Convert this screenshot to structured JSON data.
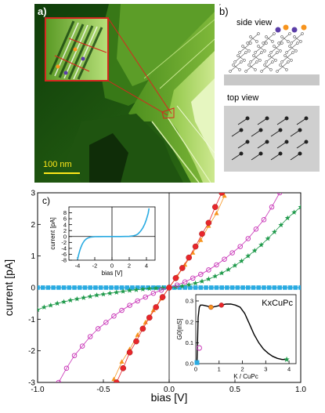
{
  "panel_a": {
    "label": "a)",
    "scalebar": "100 nm"
  },
  "panel_b": {
    "label": "b)",
    "side_view": "side view",
    "top_view": "top view"
  },
  "chart_data": [
    {
      "type": "line",
      "panel_label": "c)",
      "xlabel": "bias [V]",
      "ylabel": "current [pA]",
      "xlim": [
        -1.0,
        1.0
      ],
      "ylim": [
        -3,
        3
      ],
      "xticks": [
        "-1.0",
        "-0.5",
        "0.0",
        "0.5",
        "1.0"
      ],
      "yticks": [
        "-3",
        "-2",
        "-1",
        "0",
        "1",
        "2",
        "3"
      ],
      "grid": false,
      "series": [
        {
          "marker": "filled-circle",
          "color": "#e8262b",
          "x": [
            -0.4,
            -0.35,
            -0.3,
            -0.25,
            -0.2,
            -0.15,
            -0.1,
            -0.05,
            0.0,
            0.05,
            0.1,
            0.15,
            0.2,
            0.25,
            0.3,
            0.35,
            0.4
          ],
          "y": [
            -3.0,
            -2.55,
            -2.05,
            -1.7,
            -1.3,
            -0.95,
            -0.62,
            -0.3,
            0.0,
            0.3,
            0.62,
            0.95,
            1.3,
            1.7,
            2.05,
            2.55,
            3.0
          ]
        },
        {
          "marker": "triangle",
          "color": "#f7941d",
          "x": [
            -0.42,
            -0.36,
            -0.3,
            -0.24,
            -0.18,
            -0.12,
            -0.06,
            0.0,
            0.06,
            0.12,
            0.18,
            0.24,
            0.3,
            0.36,
            0.42
          ],
          "y": [
            -2.9,
            -2.35,
            -1.95,
            -1.5,
            -1.1,
            -0.72,
            -0.35,
            0.0,
            0.35,
            0.72,
            1.1,
            1.5,
            1.95,
            2.35,
            2.9
          ]
        },
        {
          "marker": "open-circle",
          "color": "#c72fb5",
          "x": [
            -0.84,
            -0.78,
            -0.72,
            -0.66,
            -0.6,
            -0.54,
            -0.48,
            -0.42,
            -0.36,
            -0.3,
            -0.24,
            -0.18,
            -0.12,
            -0.06,
            0.0,
            0.06,
            0.12,
            0.18,
            0.24,
            0.3,
            0.36,
            0.42,
            0.48,
            0.54,
            0.6,
            0.66,
            0.72,
            0.78,
            0.84
          ],
          "y": [
            -3.0,
            -2.55,
            -2.15,
            -1.85,
            -1.55,
            -1.3,
            -1.1,
            -0.9,
            -0.72,
            -0.56,
            -0.42,
            -0.3,
            -0.18,
            -0.08,
            0.0,
            0.08,
            0.18,
            0.3,
            0.42,
            0.56,
            0.72,
            0.9,
            1.1,
            1.3,
            1.55,
            1.85,
            2.15,
            2.55,
            3.0
          ]
        },
        {
          "marker": "star",
          "color": "#1f9a4b",
          "x": [
            -1.0,
            -0.95,
            -0.9,
            -0.85,
            -0.8,
            -0.75,
            -0.7,
            -0.65,
            -0.6,
            -0.55,
            -0.5,
            -0.45,
            -0.4,
            -0.35,
            -0.3,
            -0.25,
            -0.2,
            -0.15,
            -0.1,
            -0.05,
            0.0,
            0.05,
            0.1,
            0.15,
            0.2,
            0.25,
            0.3,
            0.35,
            0.4,
            0.45,
            0.5,
            0.55,
            0.6,
            0.65,
            0.7,
            0.75,
            0.8,
            0.85,
            0.9,
            0.95,
            1.0
          ],
          "y": [
            -0.7,
            -0.62,
            -0.56,
            -0.5,
            -0.45,
            -0.4,
            -0.36,
            -0.32,
            -0.28,
            -0.24,
            -0.21,
            -0.18,
            -0.15,
            -0.12,
            -0.09,
            -0.07,
            -0.05,
            -0.03,
            -0.02,
            -0.01,
            0.0,
            0.02,
            0.05,
            0.09,
            0.14,
            0.2,
            0.27,
            0.36,
            0.46,
            0.57,
            0.7,
            0.84,
            1.0,
            1.17,
            1.35,
            1.55,
            1.76,
            1.98,
            2.2,
            2.38,
            2.55
          ]
        },
        {
          "marker": "filled-square",
          "color": "#29abe2",
          "x": [
            -1.0,
            -0.96,
            -0.92,
            -0.88,
            -0.84,
            -0.8,
            -0.76,
            -0.72,
            -0.68,
            -0.64,
            -0.6,
            -0.56,
            -0.52,
            -0.48,
            -0.44,
            -0.4,
            -0.36,
            -0.32,
            -0.28,
            -0.24,
            -0.2,
            -0.16,
            -0.12,
            -0.08,
            -0.04,
            0.0,
            0.04,
            0.08,
            0.12,
            0.16,
            0.2,
            0.24,
            0.28,
            0.32,
            0.36,
            0.4,
            0.44,
            0.48,
            0.52,
            0.56,
            0.6,
            0.64,
            0.68,
            0.72,
            0.76,
            0.8,
            0.84,
            0.88,
            0.92,
            0.96,
            1.0
          ],
          "y": [
            0,
            0,
            0,
            0,
            0,
            0,
            0,
            0,
            0,
            0,
            0,
            0,
            0,
            0,
            0,
            0,
            0,
            0,
            0,
            0,
            0,
            0,
            0,
            0,
            0,
            0,
            0,
            0,
            0,
            0,
            0,
            0,
            0,
            0,
            0,
            0,
            0,
            0,
            0,
            0,
            0,
            0,
            0,
            0,
            0,
            0,
            0,
            0,
            0,
            0,
            0
          ]
        }
      ]
    },
    {
      "type": "line",
      "xlabel": "bias [V]",
      "ylabel": "current [pA]",
      "xlim": [
        -5,
        5
      ],
      "ylim": [
        -8,
        10
      ],
      "xticks": [
        "-4",
        "-2",
        "0",
        "2",
        "4"
      ],
      "yticks": [
        "-8",
        "-6",
        "-4",
        "-2",
        "0",
        "2",
        "4",
        "6",
        "8"
      ],
      "series": [
        {
          "color": "#29abe2",
          "x": [
            -4.0,
            -3.9,
            -3.8,
            -3.7,
            -3.6,
            -3.5,
            -3.4,
            -3.2,
            -3.0,
            -2.8,
            -2.5,
            -2.0,
            -1.5,
            -1.0,
            0.0,
            1.0,
            1.5,
            2.0,
            2.5,
            2.8,
            3.0,
            3.2,
            3.4,
            3.6,
            3.8,
            4.0,
            4.2,
            4.3
          ],
          "y": [
            -7.8,
            -6.5,
            -5.4,
            -4.4,
            -3.6,
            -2.9,
            -2.3,
            -1.4,
            -0.85,
            -0.5,
            -0.22,
            -0.06,
            -0.02,
            0.0,
            0.0,
            0.0,
            0.02,
            0.06,
            0.22,
            0.5,
            0.85,
            1.4,
            2.1,
            3.0,
            4.2,
            5.8,
            7.8,
            9.5
          ]
        }
      ]
    },
    {
      "type": "line",
      "title": "KxCuPc",
      "xlabel": "K / CuPc",
      "ylabel": "G0[mS]",
      "xlim": [
        0,
        4.3
      ],
      "ylim": [
        0,
        0.33
      ],
      "xticks": [
        "0",
        "1",
        "2",
        "3",
        "4"
      ],
      "yticks": [
        "0.0",
        "0.1",
        "0.2",
        "0.3"
      ],
      "series": [
        {
          "color": "#000000",
          "x": [
            0.05,
            0.1,
            0.15,
            0.2,
            0.3,
            0.5,
            0.7,
            0.9,
            1.1,
            1.3,
            1.5,
            1.7,
            1.9,
            2.1,
            2.3,
            2.5,
            2.7,
            2.9,
            3.1,
            3.3,
            3.5,
            3.7,
            3.9
          ],
          "y": [
            0.0,
            0.22,
            0.27,
            0.28,
            0.28,
            0.275,
            0.27,
            0.275,
            0.28,
            0.285,
            0.285,
            0.28,
            0.27,
            0.24,
            0.19,
            0.14,
            0.1,
            0.07,
            0.05,
            0.035,
            0.025,
            0.02,
            0.02
          ]
        }
      ],
      "points": [
        {
          "x": 0.05,
          "y": 0.005,
          "color": "#29abe2",
          "marker": "filled-square"
        },
        {
          "x": 0.15,
          "y": 0.075,
          "color": "#c72fb5",
          "marker": "open-circle"
        },
        {
          "x": 0.65,
          "y": 0.27,
          "color": "#f7941d",
          "marker": "filled-circle"
        },
        {
          "x": 1.1,
          "y": 0.28,
          "color": "#e8262b",
          "marker": "filled-circle"
        },
        {
          "x": 3.9,
          "y": 0.02,
          "color": "#1f9a4b",
          "marker": "star"
        }
      ]
    }
  ]
}
